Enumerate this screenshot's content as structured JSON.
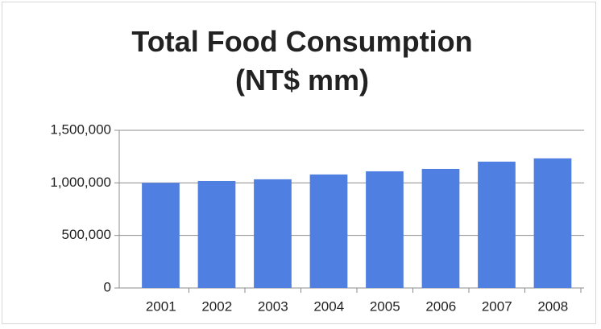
{
  "chart_data": {
    "type": "bar",
    "title": "Total Food Consumption (NT$ mm)",
    "categories": [
      "2001",
      "2002",
      "2003",
      "2004",
      "2005",
      "2006",
      "2007",
      "2008"
    ],
    "values": [
      1000000,
      1018000,
      1034000,
      1080000,
      1110000,
      1133000,
      1202000,
      1233000
    ],
    "color": "#4f7fe0",
    "ylim": [
      0,
      1500000
    ],
    "yticks": [
      0,
      {
        "value": 500000,
        "label": "500,000"
      },
      {
        "value": 1000000,
        "label": "1,000,000"
      },
      {
        "value": 1500000,
        "label": "1,500,000"
      }
    ],
    "grid": true
  }
}
